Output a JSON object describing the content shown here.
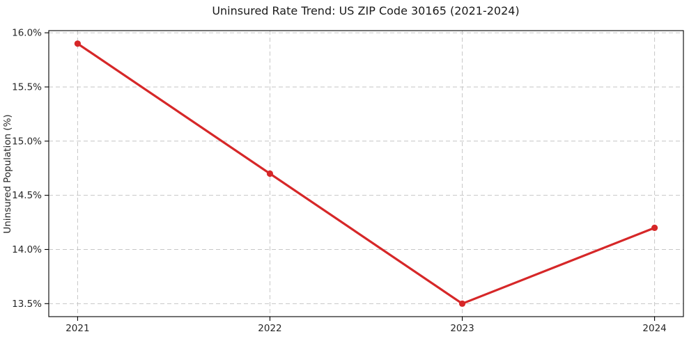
{
  "chart_data": {
    "type": "line",
    "title": "Uninsured Rate Trend: US ZIP Code 30165 (2021-2024)",
    "xlabel": "",
    "ylabel": "Uninsured Population (%)",
    "categories": [
      "2021",
      "2022",
      "2023",
      "2024"
    ],
    "x": [
      2021,
      2022,
      2023,
      2024
    ],
    "series": [
      {
        "name": "Uninsured rate",
        "values": [
          15.9,
          14.7,
          13.5,
          14.2
        ]
      }
    ],
    "xlim": [
      2020.85,
      2024.15
    ],
    "ylim": [
      13.38,
      16.02
    ],
    "xticks": [
      2021,
      2022,
      2023,
      2024
    ],
    "xtick_labels": [
      "2021",
      "2022",
      "2023",
      "2024"
    ],
    "yticks": [
      13.5,
      14.0,
      14.5,
      15.0,
      15.5,
      16.0
    ],
    "ytick_labels": [
      "13.5%",
      "14.0%",
      "14.5%",
      "15.0%",
      "15.5%",
      "16.0%"
    ],
    "grid": true,
    "grid_style": "dashed",
    "legend": false,
    "marker": "circle",
    "colors": {
      "line": "#d62728",
      "marker": "#d62728",
      "grid": "#c6c6c6",
      "spine": "#000000",
      "tick": "#000000",
      "text": "#262626",
      "background": "#ffffff"
    }
  }
}
